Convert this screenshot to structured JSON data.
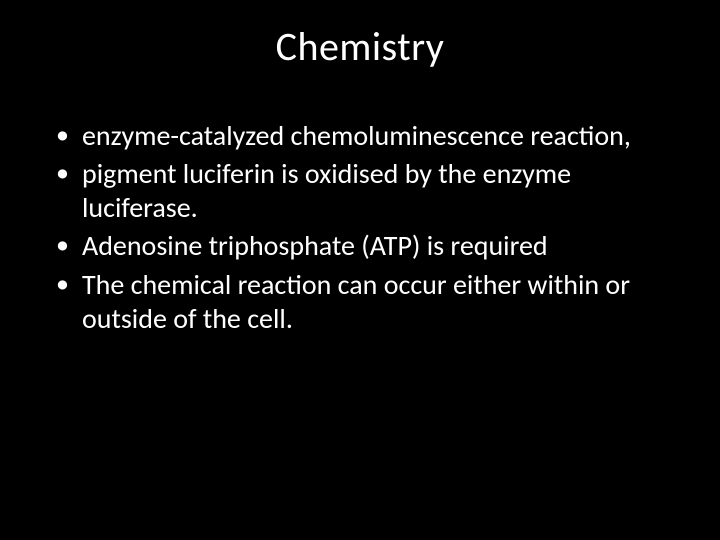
{
  "slide": {
    "title": "Chemistry",
    "background_color": "#000000",
    "text_color": "#ffffff",
    "title_fontsize": 40,
    "body_fontsize": 28,
    "bullets": [
      "enzyme-catalyzed chemoluminescence reaction,",
      "pigment luciferin is oxidised by the enzyme luciferase.",
      "Adenosine triphosphate (ATP) is required",
      "The chemical reaction can occur either within or outside of the cell."
    ]
  }
}
